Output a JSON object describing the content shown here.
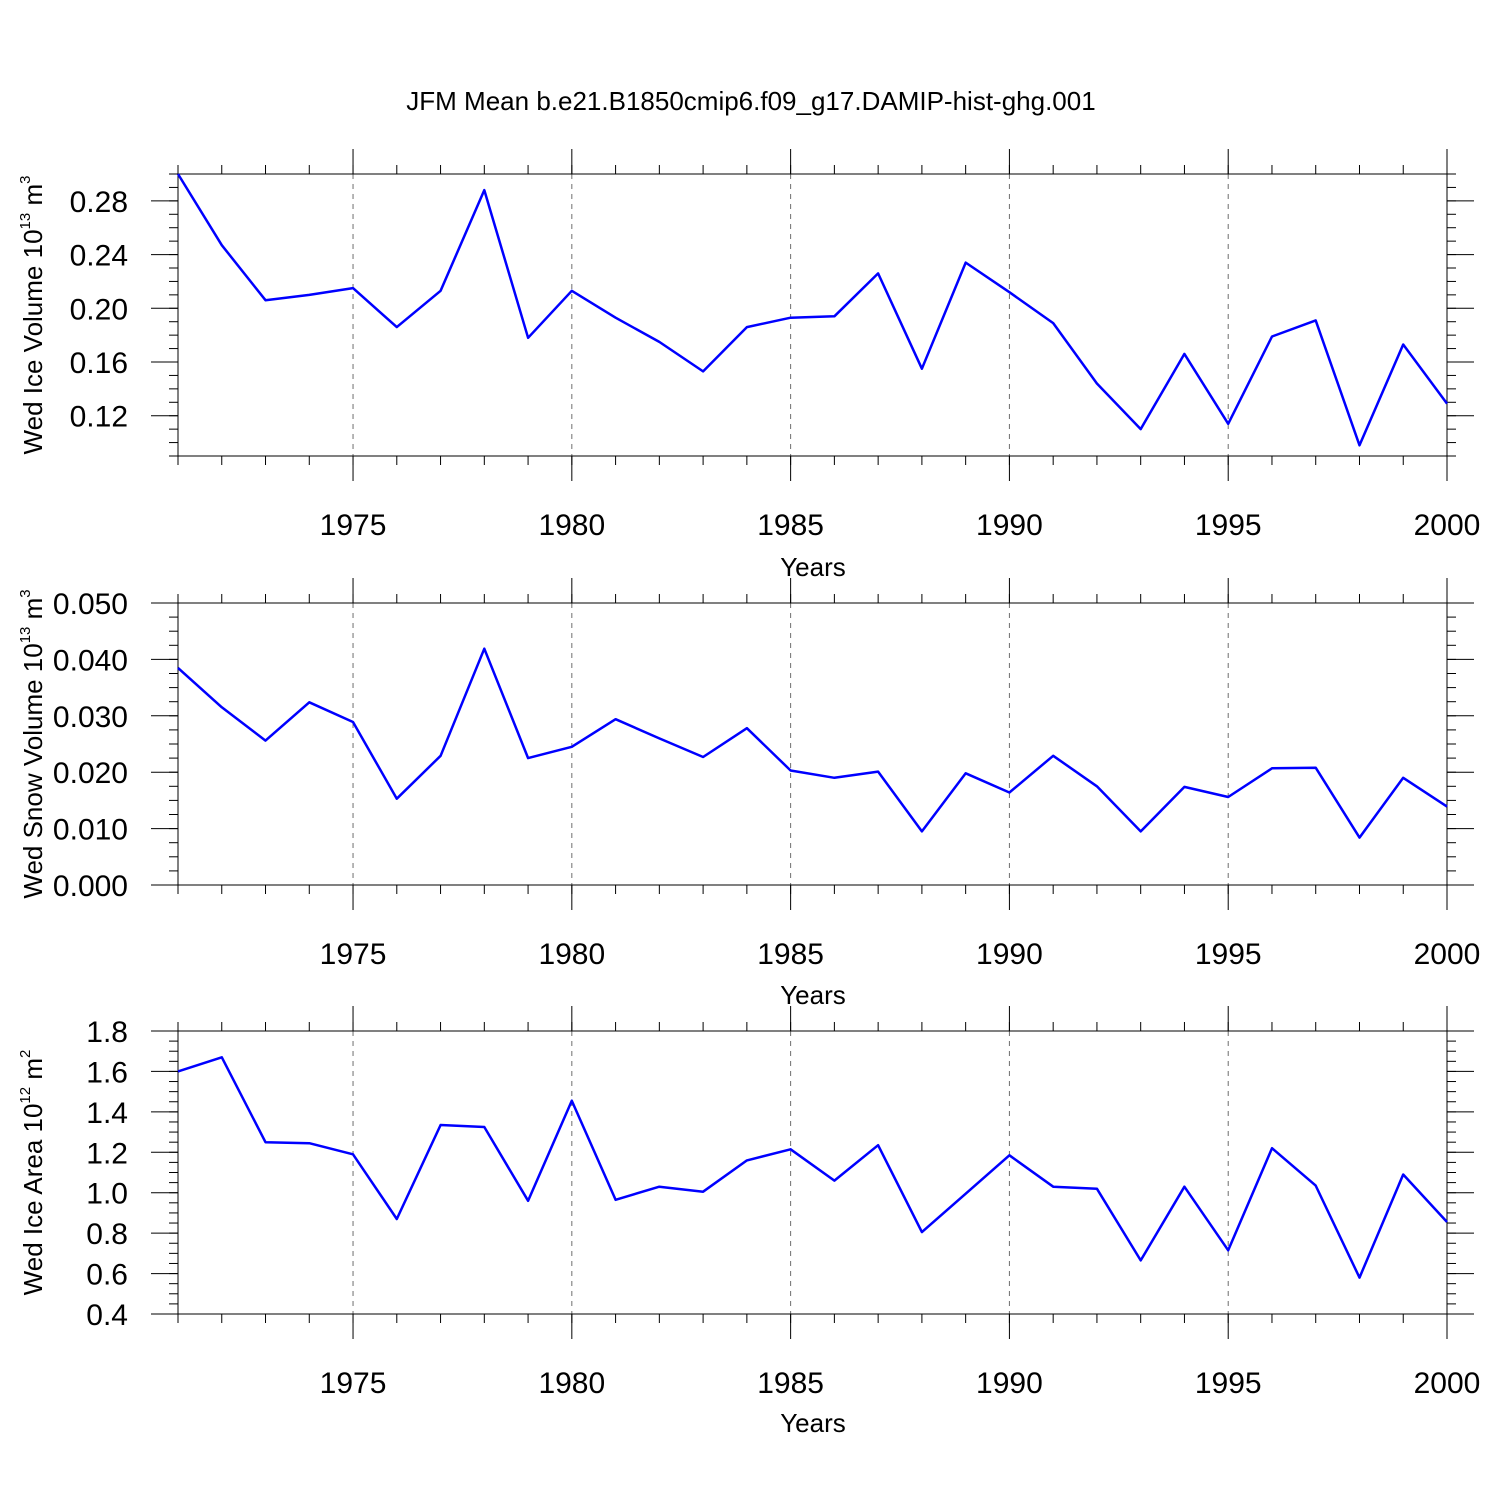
{
  "title": "JFM Mean b.e21.B1850cmip6.f09_g17.DAMIP-hist-ghg.001",
  "colors": {
    "line": "#0000ff",
    "axis": "#000000",
    "grid": "#6e6e6e"
  },
  "chart_data": [
    {
      "type": "line",
      "ylabel": {
        "prefix": "Wed Ice Volume 10",
        "exp": "13",
        "unit": " m",
        "unit_exp": "3"
      },
      "xlabel": "Years",
      "xlim": [
        1971,
        2000
      ],
      "ylim": [
        0.09,
        0.3
      ],
      "xticks": [
        "1975",
        "1980",
        "1985",
        "1990",
        "1995",
        "2000"
      ],
      "yticks": [
        "0.12",
        "0.16",
        "0.20",
        "0.24",
        "0.28"
      ],
      "grid": "vertical dashed at major x ticks",
      "series": [
        {
          "x": [
            1971,
            1972,
            1973,
            1974,
            1975,
            1976,
            1977,
            1978,
            1979,
            1980,
            1981,
            1982,
            1983,
            1984,
            1985,
            1986,
            1987,
            1988,
            1989,
            1990,
            1991,
            1992,
            1993,
            1994,
            1995,
            1996,
            1997,
            1998,
            1999,
            2000
          ],
          "values": [
            0.3,
            0.247,
            0.206,
            0.21,
            0.215,
            0.186,
            0.213,
            0.288,
            0.178,
            0.213,
            0.193,
            0.175,
            0.153,
            0.186,
            0.193,
            0.194,
            0.226,
            0.155,
            0.234,
            0.212,
            0.189,
            0.144,
            0.11,
            0.166,
            0.114,
            0.179,
            0.191,
            0.098,
            0.173,
            0.129
          ]
        }
      ]
    },
    {
      "type": "line",
      "ylabel": {
        "prefix": "Wed Snow Volume 10",
        "exp": "13",
        "unit": " m",
        "unit_exp": "3"
      },
      "xlabel": "Years",
      "xlim": [
        1971,
        2000
      ],
      "ylim": [
        0,
        0.05
      ],
      "xticks": [
        "1975",
        "1980",
        "1985",
        "1990",
        "1995",
        "2000"
      ],
      "yticks": [
        "0.000",
        "0.010",
        "0.020",
        "0.030",
        "0.040",
        "0.050"
      ],
      "grid": "vertical dashed at major x ticks",
      "series": [
        {
          "x": [
            1971,
            1972,
            1973,
            1974,
            1975,
            1976,
            1977,
            1978,
            1979,
            1980,
            1981,
            1982,
            1983,
            1984,
            1985,
            1986,
            1987,
            1988,
            1989,
            1990,
            1991,
            1992,
            1993,
            1994,
            1995,
            1996,
            1997,
            1998,
            1999,
            2000
          ],
          "values": [
            0.0385,
            0.0315,
            0.0256,
            0.0324,
            0.0289,
            0.0153,
            0.0229,
            0.0419,
            0.0225,
            0.0245,
            0.0294,
            0.026,
            0.0227,
            0.0278,
            0.0203,
            0.019,
            0.0201,
            0.0095,
            0.0198,
            0.0164,
            0.0229,
            0.0175,
            0.0095,
            0.0174,
            0.0156,
            0.0207,
            0.0208,
            0.0084,
            0.019,
            0.0139
          ]
        }
      ]
    },
    {
      "type": "line",
      "ylabel": {
        "prefix": "Wed Ice Area 10",
        "exp": "12",
        "unit": " m",
        "unit_exp": "2"
      },
      "xlabel": "Years",
      "xlim": [
        1971,
        2000
      ],
      "ylim": [
        0.4,
        1.8
      ],
      "xticks": [
        "1975",
        "1980",
        "1985",
        "1990",
        "1995",
        "2000"
      ],
      "yticks": [
        "0.4",
        "0.6",
        "0.8",
        "1.0",
        "1.2",
        "1.4",
        "1.6",
        "1.8"
      ],
      "grid": "vertical dashed at major x ticks",
      "series": [
        {
          "x": [
            1971,
            1972,
            1973,
            1974,
            1975,
            1976,
            1977,
            1978,
            1979,
            1980,
            1981,
            1982,
            1983,
            1984,
            1985,
            1986,
            1987,
            1988,
            1989,
            1990,
            1991,
            1992,
            1993,
            1994,
            1995,
            1996,
            1997,
            1998,
            1999,
            2000
          ],
          "values": [
            1.6,
            1.67,
            1.25,
            1.245,
            1.19,
            0.87,
            1.335,
            1.325,
            0.96,
            1.455,
            0.965,
            1.03,
            1.005,
            1.16,
            1.215,
            1.06,
            1.235,
            0.805,
            0.995,
            1.185,
            1.03,
            1.02,
            0.665,
            1.03,
            0.715,
            1.22,
            1.035,
            0.58,
            1.09,
            0.855
          ]
        }
      ]
    }
  ]
}
